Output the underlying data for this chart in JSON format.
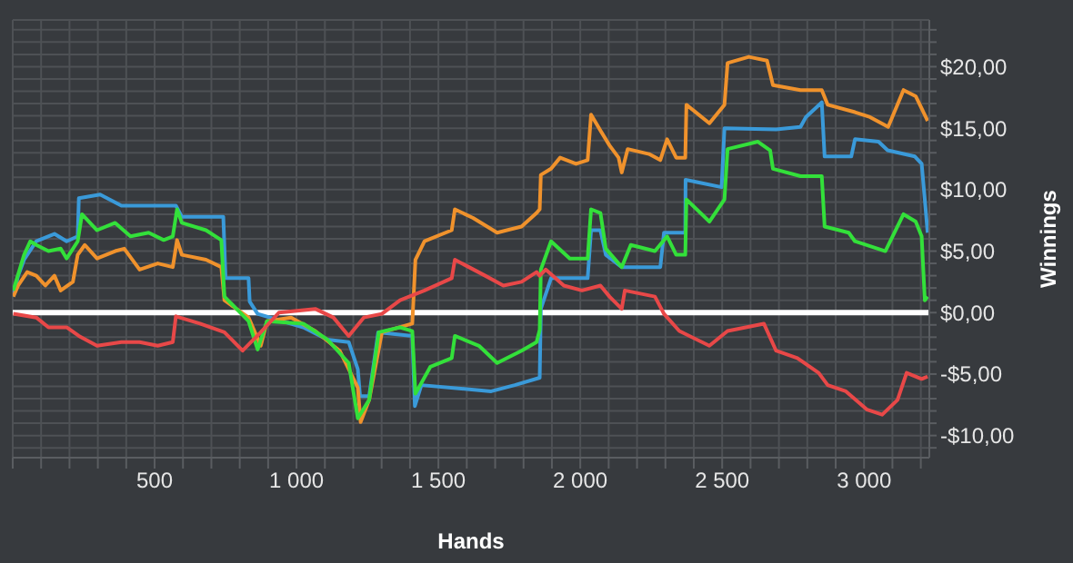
{
  "chart_data": {
    "type": "line",
    "xlabel": "Hands",
    "ylabel": "Winnings",
    "xlim": [
      0,
      3230
    ],
    "ylim": [
      -11.8,
      23.8
    ],
    "xticks": [
      {
        "value": 0,
        "label": null
      },
      {
        "value": 100,
        "label": null
      },
      {
        "value": 200,
        "label": null
      },
      {
        "value": 300,
        "label": null
      },
      {
        "value": 400,
        "label": null
      },
      {
        "value": 500,
        "label": "500"
      },
      {
        "value": 600,
        "label": null
      },
      {
        "value": 700,
        "label": null
      },
      {
        "value": 800,
        "label": null
      },
      {
        "value": 900,
        "label": null
      },
      {
        "value": 1000,
        "label": "1 000"
      },
      {
        "value": 1100,
        "label": null
      },
      {
        "value": 1200,
        "label": null
      },
      {
        "value": 1300,
        "label": null
      },
      {
        "value": 1400,
        "label": null
      },
      {
        "value": 1500,
        "label": "1 500"
      },
      {
        "value": 1600,
        "label": null
      },
      {
        "value": 1700,
        "label": null
      },
      {
        "value": 1800,
        "label": null
      },
      {
        "value": 1900,
        "label": null
      },
      {
        "value": 2000,
        "label": "2 000"
      },
      {
        "value": 2100,
        "label": null
      },
      {
        "value": 2200,
        "label": null
      },
      {
        "value": 2300,
        "label": null
      },
      {
        "value": 2400,
        "label": null
      },
      {
        "value": 2500,
        "label": "2 500"
      },
      {
        "value": 2600,
        "label": null
      },
      {
        "value": 2700,
        "label": null
      },
      {
        "value": 2800,
        "label": null
      },
      {
        "value": 2900,
        "label": null
      },
      {
        "value": 3000,
        "label": "3 000"
      },
      {
        "value": 3100,
        "label": null
      },
      {
        "value": 3200,
        "label": null
      }
    ],
    "yticks": [
      {
        "value": -11,
        "label": null
      },
      {
        "value": -10,
        "label": "-$10,00"
      },
      {
        "value": -9,
        "label": null
      },
      {
        "value": -8,
        "label": null
      },
      {
        "value": -7,
        "label": null
      },
      {
        "value": -6,
        "label": null
      },
      {
        "value": -5,
        "label": "-$5,00"
      },
      {
        "value": -4,
        "label": null
      },
      {
        "value": -3,
        "label": null
      },
      {
        "value": -2,
        "label": null
      },
      {
        "value": -1,
        "label": null
      },
      {
        "value": 0,
        "label": "$0,00"
      },
      {
        "value": 1,
        "label": null
      },
      {
        "value": 2,
        "label": null
      },
      {
        "value": 3,
        "label": null
      },
      {
        "value": 4,
        "label": null
      },
      {
        "value": 5,
        "label": "$5,00"
      },
      {
        "value": 6,
        "label": null
      },
      {
        "value": 7,
        "label": null
      },
      {
        "value": 8,
        "label": null
      },
      {
        "value": 9,
        "label": null
      },
      {
        "value": 10,
        "label": "$10,00"
      },
      {
        "value": 11,
        "label": null
      },
      {
        "value": 12,
        "label": null
      },
      {
        "value": 13,
        "label": null
      },
      {
        "value": 14,
        "label": null
      },
      {
        "value": 15,
        "label": "$15,00"
      },
      {
        "value": 16,
        "label": null
      },
      {
        "value": 17,
        "label": null
      },
      {
        "value": 18,
        "label": null
      },
      {
        "value": 19,
        "label": null
      },
      {
        "value": 20,
        "label": "$20,00"
      },
      {
        "value": 21,
        "label": null
      },
      {
        "value": 22,
        "label": null
      },
      {
        "value": 23,
        "label": null
      }
    ],
    "grid": true,
    "marker": "none",
    "line_style": "solid",
    "ref_lines": [
      {
        "axis": "y",
        "value": 0,
        "color": "#ffffff"
      }
    ],
    "series": [
      {
        "color": "#3a9ad9",
        "x": [
          2,
          19,
          40,
          83,
          147,
          190,
          229,
          233,
          308,
          383,
          575,
          596,
          742,
          750,
          831,
          835,
          863,
          1024,
          1109,
          1184,
          1216,
          1224,
          1256,
          1288,
          1408,
          1417,
          1440,
          1686,
          1769,
          1857,
          1861,
          1897,
          2026,
          2038,
          2071,
          2090,
          2146,
          2282,
          2295,
          2370,
          2371,
          2498,
          2508,
          2690,
          2776,
          2795,
          2851,
          2861,
          2955,
          2968,
          3051,
          3083,
          3179,
          3203,
          3214,
          3224
        ],
        "values": [
          1.3,
          3.0,
          4.3,
          5.8,
          6.4,
          5.8,
          6.2,
          9.3,
          9.6,
          8.7,
          8.7,
          7.8,
          7.8,
          2.8,
          2.8,
          0.9,
          -0.1,
          -1.2,
          -2.2,
          -2.4,
          -4.6,
          -6.8,
          -6.8,
          -1.6,
          -1.9,
          -7.6,
          -5.9,
          -6.4,
          -5.9,
          -5.3,
          0.3,
          2.8,
          2.8,
          6.7,
          6.7,
          4.7,
          3.7,
          3.7,
          6.5,
          6.5,
          10.8,
          10.2,
          15.0,
          14.9,
          15.1,
          15.9,
          17.1,
          12.7,
          12.7,
          14.1,
          13.9,
          13.2,
          12.7,
          12.1,
          9.2,
          6.5
        ]
      },
      {
        "color": "#f0922c",
        "x": [
          2,
          19,
          51,
          83,
          115,
          147,
          169,
          212,
          229,
          254,
          297,
          361,
          393,
          447,
          511,
          564,
          579,
          596,
          681,
          735,
          746,
          831,
          874,
          896,
          981,
          1066,
          1152,
          1216,
          1226,
          1256,
          1301,
          1408,
          1419,
          1451,
          1547,
          1558,
          1622,
          1707,
          1793,
          1846,
          1857,
          1861,
          1897,
          1929,
          1985,
          2026,
          2038,
          2071,
          2103,
          2135,
          2146,
          2167,
          2242,
          2282,
          2306,
          2338,
          2370,
          2374,
          2455,
          2508,
          2519,
          2594,
          2658,
          2679,
          2776,
          2851,
          2872,
          2968,
          3021,
          3085,
          3139,
          3182,
          3224
        ],
        "values": [
          1.3,
          2.2,
          3.3,
          3.0,
          2.2,
          3.0,
          1.8,
          2.5,
          4.7,
          5.5,
          4.4,
          5.0,
          5.2,
          3.5,
          4.0,
          3.7,
          5.9,
          4.7,
          4.3,
          3.7,
          1.0,
          -0.4,
          -2.7,
          -0.7,
          -0.4,
          -1.5,
          -3.1,
          -6.1,
          -8.9,
          -7.1,
          -1.6,
          -0.9,
          4.3,
          5.8,
          6.7,
          8.4,
          7.7,
          6.5,
          7.0,
          8.1,
          8.4,
          11.2,
          11.7,
          12.6,
          12.1,
          12.4,
          16.1,
          14.8,
          13.6,
          12.6,
          11.4,
          13.3,
          12.9,
          12.4,
          14.1,
          12.6,
          12.6,
          16.9,
          15.4,
          16.9,
          20.3,
          20.8,
          20.5,
          18.5,
          18.1,
          18.1,
          16.9,
          16.3,
          15.9,
          15.1,
          18.1,
          17.6,
          15.6
        ]
      },
      {
        "color": "#33e03a",
        "x": [
          2,
          40,
          62,
          83,
          126,
          169,
          190,
          229,
          244,
          297,
          361,
          415,
          479,
          532,
          564,
          579,
          596,
          681,
          735,
          746,
          831,
          863,
          896,
          1024,
          1109,
          1184,
          1216,
          1256,
          1290,
          1365,
          1408,
          1419,
          1472,
          1547,
          1558,
          1643,
          1707,
          1793,
          1846,
          1857,
          1861,
          1897,
          1963,
          2026,
          2038,
          2071,
          2090,
          2146,
          2178,
          2263,
          2306,
          2338,
          2370,
          2374,
          2455,
          2508,
          2519,
          2626,
          2669,
          2679,
          2776,
          2851,
          2861,
          2946,
          2968,
          3075,
          3139,
          3182,
          3203,
          3214,
          3224
        ],
        "values": [
          1.8,
          4.7,
          5.8,
          5.5,
          5.0,
          5.2,
          4.4,
          5.8,
          8.0,
          6.7,
          7.3,
          6.2,
          6.5,
          5.9,
          6.2,
          8.4,
          7.3,
          6.7,
          5.9,
          1.3,
          -0.7,
          -3.0,
          -0.7,
          -0.9,
          -2.2,
          -4.1,
          -8.6,
          -7.1,
          -1.6,
          -1.2,
          -1.5,
          -6.6,
          -4.4,
          -3.7,
          -1.9,
          -2.7,
          -4.1,
          -3.1,
          -2.4,
          -1.4,
          3.5,
          5.8,
          4.4,
          4.4,
          8.4,
          8.1,
          5.2,
          3.7,
          5.5,
          5.0,
          6.2,
          4.7,
          4.7,
          9.2,
          7.4,
          9.2,
          13.3,
          13.9,
          13.2,
          11.7,
          11.1,
          11.1,
          7.0,
          6.5,
          5.8,
          5.0,
          8.0,
          7.4,
          6.2,
          1.0,
          1.3
        ]
      },
      {
        "color": "#e84848",
        "x": [
          2,
          83,
          126,
          190,
          233,
          297,
          383,
          447,
          511,
          564,
          575,
          660,
          746,
          810,
          874,
          938,
          1066,
          1130,
          1184,
          1237,
          1301,
          1365,
          1451,
          1547,
          1558,
          1665,
          1729,
          1793,
          1846,
          1857,
          1878,
          1942,
          2006,
          2071,
          2103,
          2146,
          2157,
          2263,
          2295,
          2349,
          2455,
          2519,
          2647,
          2690,
          2765,
          2840,
          2872,
          2936,
          3011,
          3064,
          3118,
          3150,
          3203,
          3224
        ],
        "values": [
          -0.1,
          -0.4,
          -1.2,
          -1.2,
          -1.9,
          -2.7,
          -2.4,
          -2.4,
          -2.7,
          -2.4,
          -0.3,
          -0.9,
          -1.6,
          -3.1,
          -1.6,
          0.0,
          0.3,
          -0.4,
          -1.9,
          -0.4,
          -0.1,
          1.0,
          1.8,
          2.8,
          4.3,
          3.0,
          2.2,
          2.5,
          3.3,
          3.0,
          3.5,
          2.2,
          1.8,
          2.2,
          1.3,
          0.3,
          1.8,
          1.3,
          -0.1,
          -1.5,
          -2.7,
          -1.5,
          -0.9,
          -3.1,
          -3.7,
          -4.9,
          -5.9,
          -6.4,
          -7.9,
          -8.3,
          -7.1,
          -4.9,
          -5.4,
          -5.2
        ]
      }
    ]
  }
}
